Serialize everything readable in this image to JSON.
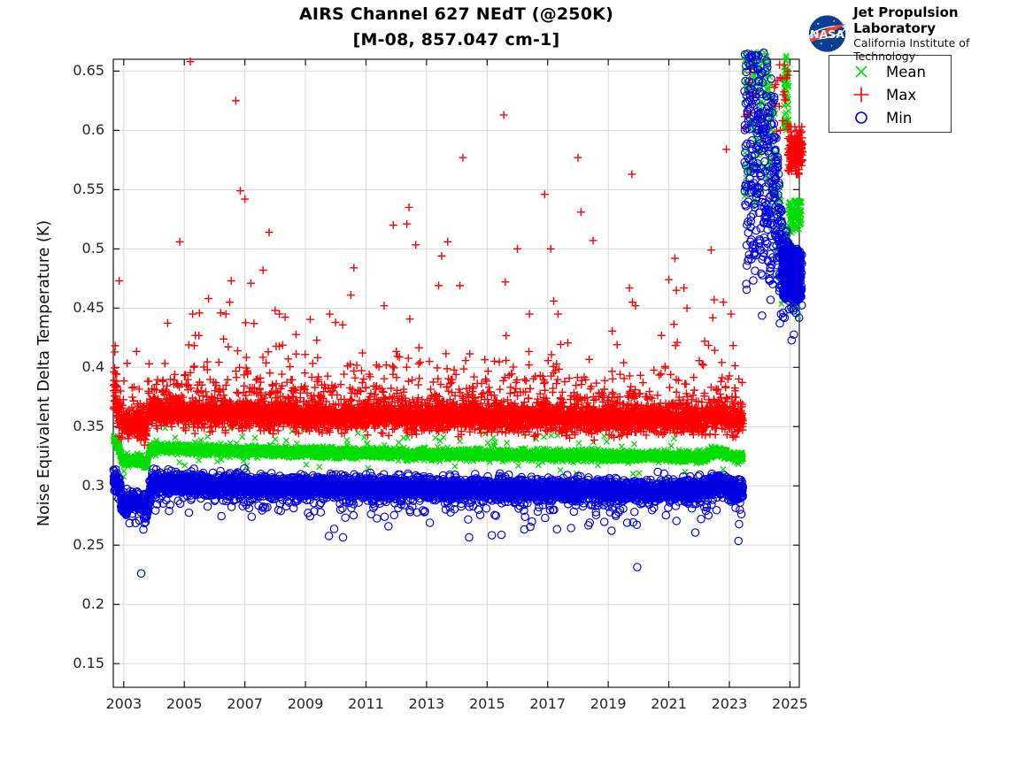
{
  "branding": {
    "logo_text": "NASA",
    "org_name": "Jet Propulsion Laboratory",
    "org_sub": "California Institute of Technology",
    "logo_blue": "#0B3D91",
    "logo_red": "#FC3D21"
  },
  "chart_data": {
    "type": "scatter",
    "title": "AIRS Channel 627 NEdT (@250K)",
    "subtitle": "[M-08, 857.047 cm-1]",
    "xlabel": "",
    "ylabel": "Noise Equivalent Delta Temperature (K)",
    "xlim": [
      2002.655,
      2025.31
    ],
    "ylim": [
      0.13,
      0.66
    ],
    "grid": true,
    "legend_position": "outside-top-right",
    "xticks": [
      2003,
      2005,
      2007,
      2009,
      2011,
      2013,
      2015,
      2017,
      2019,
      2021,
      2023,
      2025
    ],
    "xticklabels": [
      "2003",
      "2005",
      "2007",
      "2009",
      "2011",
      "2013",
      "2015",
      "2017",
      "2019",
      "2021",
      "2023",
      "2025"
    ],
    "yticks": [
      0.15,
      0.2,
      0.25,
      0.3,
      0.35,
      0.4,
      0.45,
      0.5,
      0.55,
      0.6,
      0.65
    ],
    "yticklabels": [
      "0.15",
      "0.2",
      "0.25",
      "0.3",
      "0.35",
      "0.4",
      "0.45",
      "0.5",
      "0.55",
      "0.6",
      "0.65"
    ],
    "axis_color": "#1a1a1a",
    "grid_color": "#d9d9d9",
    "tick_label_color": "#262626",
    "series": [
      {
        "name": "Mean",
        "marker": "x",
        "color": "#00dd00"
      },
      {
        "name": "Max",
        "marker": "+",
        "color": "#ff0000"
      },
      {
        "name": "Min",
        "marker": "o",
        "color": "#0000e0"
      }
    ],
    "value_clip_top": 0.667,
    "normal_period": {
      "t_start": 2002.665,
      "t_end": 2023.45,
      "t_step": 0.004,
      "mean": {
        "sigma": 0.002,
        "stray_prob": 0.012,
        "stray_amp": 0.012,
        "knots": [
          [
            2002.665,
            0.341
          ],
          [
            2002.75,
            0.336
          ],
          [
            2002.82,
            0.3325
          ],
          [
            2002.88,
            0.3305
          ],
          [
            2002.93,
            0.3215
          ],
          [
            2003.1,
            0.3205
          ],
          [
            2003.45,
            0.3222
          ],
          [
            2003.6,
            0.32
          ],
          [
            2003.78,
            0.3172
          ],
          [
            2003.86,
            0.3318
          ],
          [
            2005,
            0.3312
          ],
          [
            2006,
            0.3302
          ],
          [
            2008,
            0.3288
          ],
          [
            2010,
            0.328
          ],
          [
            2012,
            0.3272
          ],
          [
            2014,
            0.3266
          ],
          [
            2016,
            0.3261
          ],
          [
            2018,
            0.3257
          ],
          [
            2020,
            0.3251
          ],
          [
            2022.2,
            0.3246
          ],
          [
            2022.42,
            0.3282
          ],
          [
            2022.78,
            0.3282
          ],
          [
            2023.05,
            0.3248
          ],
          [
            2023.45,
            0.3238
          ]
        ]
      },
      "max": {
        "sigma": 0.0055,
        "tail_prob": 0.3,
        "tail_scale": 0.013,
        "tail2_prob": 0.012,
        "tail2_scale": 0.03,
        "tail_cap": 0.445,
        "start_flare_until": 2002.8,
        "start_flare_prob": 0.5,
        "start_flare_scale": 0.02,
        "knots": [
          [
            2002.665,
            0.374
          ],
          [
            2002.75,
            0.366
          ],
          [
            2002.82,
            0.36
          ],
          [
            2002.88,
            0.356
          ],
          [
            2002.93,
            0.351
          ],
          [
            2003.1,
            0.35
          ],
          [
            2003.45,
            0.352
          ],
          [
            2003.6,
            0.35
          ],
          [
            2003.78,
            0.3475
          ],
          [
            2003.86,
            0.363
          ],
          [
            2005,
            0.3615
          ],
          [
            2006,
            0.36
          ],
          [
            2008,
            0.3585
          ],
          [
            2010,
            0.358
          ],
          [
            2012,
            0.3575
          ],
          [
            2014,
            0.357
          ],
          [
            2016,
            0.3562
          ],
          [
            2018,
            0.356
          ],
          [
            2020,
            0.3552
          ],
          [
            2022.2,
            0.3548
          ],
          [
            2022.42,
            0.3585
          ],
          [
            2022.78,
            0.3585
          ],
          [
            2023.05,
            0.3552
          ],
          [
            2023.45,
            0.3545
          ]
        ]
      },
      "min": {
        "sigma": 0.0045,
        "low_tail_prob": 0.05,
        "low_tail_scale": 0.008,
        "knots": [
          [
            2002.665,
            0.309
          ],
          [
            2002.75,
            0.3035
          ],
          [
            2002.82,
            0.2995
          ],
          [
            2002.88,
            0.2975
          ],
          [
            2002.93,
            0.2865
          ],
          [
            2003.05,
            0.284
          ],
          [
            2003.3,
            0.2868
          ],
          [
            2003.45,
            0.2875
          ],
          [
            2003.55,
            0.284
          ],
          [
            2003.78,
            0.2815
          ],
          [
            2003.9,
            0.3022
          ],
          [
            2005,
            0.3015
          ],
          [
            2006,
            0.3005
          ],
          [
            2008,
            0.2995
          ],
          [
            2010,
            0.2988
          ],
          [
            2012,
            0.2978
          ],
          [
            2014,
            0.2972
          ],
          [
            2016,
            0.2968
          ],
          [
            2018,
            0.2966
          ],
          [
            2020,
            0.2962
          ],
          [
            2022.2,
            0.2966
          ],
          [
            2022.42,
            0.3012
          ],
          [
            2022.78,
            0.3012
          ],
          [
            2023.05,
            0.2972
          ],
          [
            2023.45,
            0.296
          ]
        ]
      }
    },
    "max_outliers": [
      [
        2002.85,
        0.473
      ],
      [
        2004.85,
        0.506
      ],
      [
        2005.2,
        0.658
      ],
      [
        2005.8,
        0.458
      ],
      [
        2006.2,
        0.446
      ],
      [
        2006.5,
        0.455
      ],
      [
        2006.55,
        0.473
      ],
      [
        2006.7,
        0.625
      ],
      [
        2006.85,
        0.549
      ],
      [
        2007.0,
        0.542
      ],
      [
        2007.2,
        0.471
      ],
      [
        2007.6,
        0.482
      ],
      [
        2007.8,
        0.514
      ],
      [
        2008.0,
        0.448
      ],
      [
        2010.5,
        0.461
      ],
      [
        2010.6,
        0.484
      ],
      [
        2011.6,
        0.452
      ],
      [
        2011.9,
        0.52
      ],
      [
        2012.35,
        0.521
      ],
      [
        2012.42,
        0.535
      ],
      [
        2013.4,
        0.469
      ],
      [
        2013.5,
        0.494
      ],
      [
        2013.7,
        0.506
      ],
      [
        2014.1,
        0.469
      ],
      [
        2014.2,
        0.577
      ],
      [
        2015.55,
        0.613
      ],
      [
        2015.6,
        0.472
      ],
      [
        2016.0,
        0.5
      ],
      [
        2016.9,
        0.546
      ],
      [
        2017.1,
        0.5
      ],
      [
        2017.2,
        0.456
      ],
      [
        2018.0,
        0.577
      ],
      [
        2018.1,
        0.531
      ],
      [
        2018.5,
        0.507
      ],
      [
        2019.7,
        0.467
      ],
      [
        2019.78,
        0.563
      ],
      [
        2019.8,
        0.455
      ],
      [
        2019.9,
        0.452
      ],
      [
        2021.0,
        0.474
      ],
      [
        2021.2,
        0.492
      ],
      [
        2021.25,
        0.465
      ],
      [
        2021.5,
        0.467
      ],
      [
        2021.6,
        0.45
      ],
      [
        2022.4,
        0.499
      ],
      [
        2022.5,
        0.457
      ],
      [
        2022.8,
        0.455
      ],
      [
        2022.9,
        0.584
      ]
    ],
    "anomaly_period": {
      "t_start": 2023.5,
      "t_end": 2025.4,
      "envelope": [
        [
          2023.5,
          0.555,
          0.666
        ],
        [
          2023.58,
          0.462,
          0.666
        ],
        [
          2023.68,
          0.52,
          0.666
        ],
        [
          2023.8,
          0.468,
          0.666
        ],
        [
          2023.95,
          0.538,
          0.666
        ],
        [
          2024.08,
          0.468,
          0.666
        ],
        [
          2024.22,
          0.515,
          0.666
        ],
        [
          2024.38,
          0.465,
          0.645
        ],
        [
          2024.5,
          0.498,
          0.625
        ],
        [
          2024.62,
          0.458,
          0.565
        ],
        [
          2024.78,
          0.452,
          0.528
        ],
        [
          2024.95,
          0.456,
          0.51
        ],
        [
          2025.1,
          0.454,
          0.5
        ],
        [
          2025.4,
          0.458,
          0.498
        ]
      ],
      "min": {
        "t_step": 0.0035,
        "under_prob": 0.05,
        "under_scale": 0.006,
        "blob": {
          "t_start": 2024.75,
          "t_end": 2025.35,
          "lo": 0.458,
          "hi": 0.5,
          "n": 260
        }
      },
      "mean": {
        "t_step": 0.009,
        "top_offset_scale": 0.035,
        "mid": {
          "t_start": 2023.5,
          "t_end": 2024.6,
          "depth": 0.12,
          "n": 70
        },
        "streak": {
          "t_start": 2024.8,
          "t_end": 2024.96,
          "lo": 0.598,
          "hi": 0.664,
          "n": 60
        },
        "cluster": {
          "t_start": 2024.95,
          "t_end": 2025.38,
          "lo": 0.513,
          "hi": 0.541,
          "n": 90
        }
      },
      "max": {
        "sparse1": {
          "t_start": 2024.45,
          "t_end": 2024.97,
          "lo": 0.598,
          "hi": 0.659,
          "n": 20
        },
        "sparse2": {
          "t_start": 2023.5,
          "t_end": 2023.8,
          "lo": 0.6,
          "hi": 0.662,
          "n": 10
        },
        "cluster": {
          "t_start": 2024.93,
          "t_end": 2025.42,
          "center": 0.582,
          "sigma": 0.009,
          "lo": 0.563,
          "hi": 0.603,
          "n": 160
        }
      }
    }
  }
}
